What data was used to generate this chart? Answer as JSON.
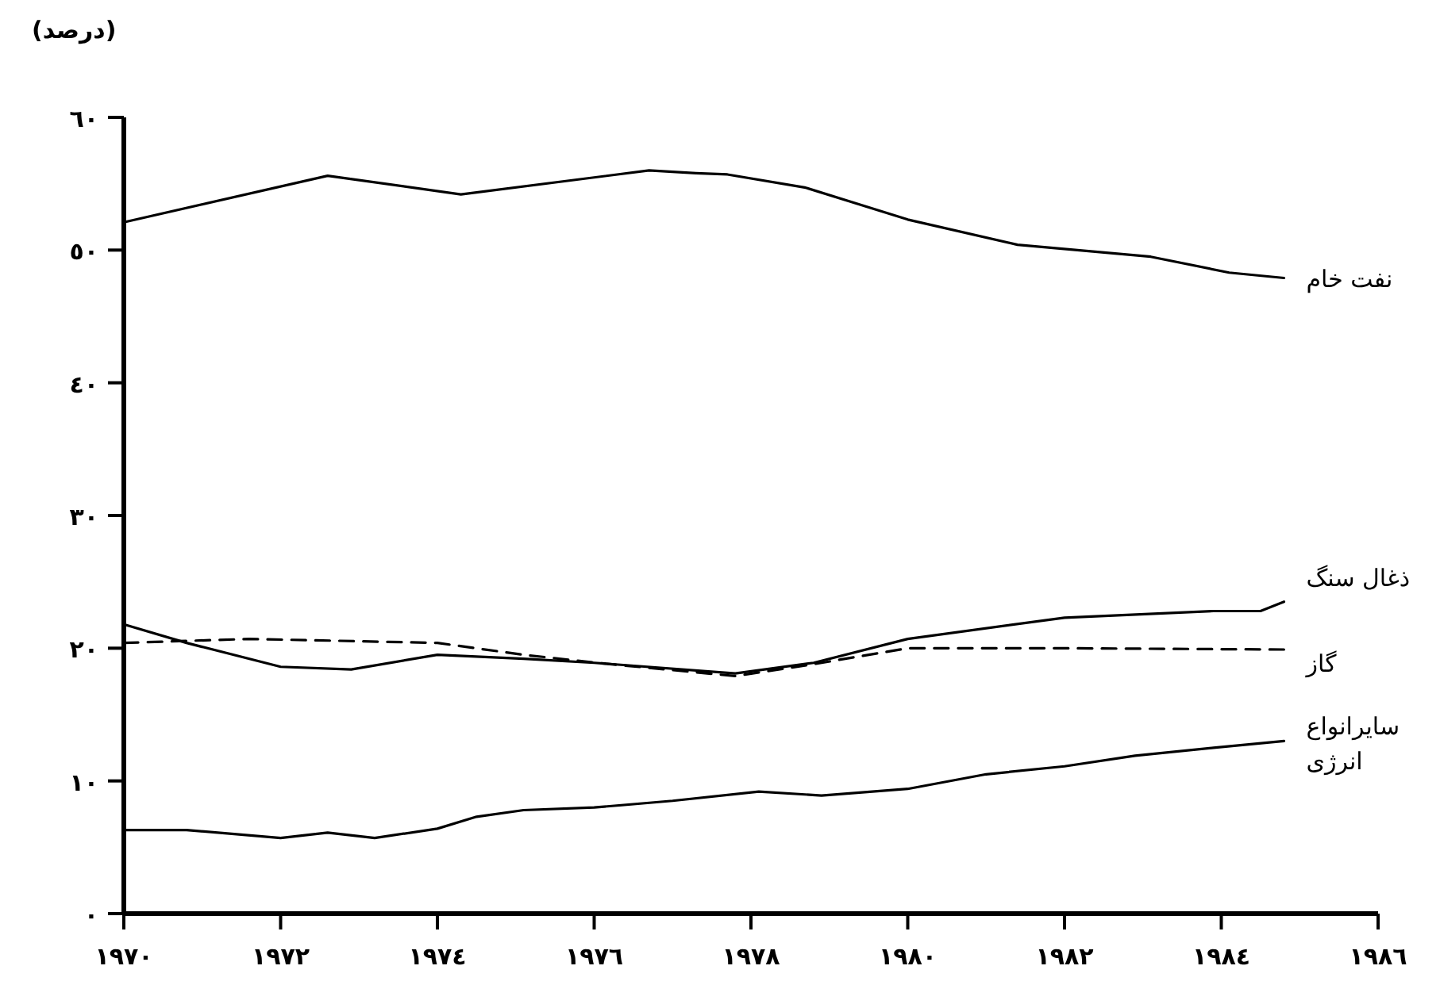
{
  "chart_data": {
    "type": "line",
    "ylabel": "(درصد)",
    "xlim": [
      1970,
      1986
    ],
    "ylim": [
      0,
      60
    ],
    "xticks": [
      {
        "value": 1970,
        "label": "١٩٧٠"
      },
      {
        "value": 1972,
        "label": "١٩٧٢"
      },
      {
        "value": 1974,
        "label": "١٩٧٤"
      },
      {
        "value": 1976,
        "label": "١٩٧٦"
      },
      {
        "value": 1978,
        "label": "١٩٧٨"
      },
      {
        "value": 1980,
        "label": "١٩٨٠"
      },
      {
        "value": 1982,
        "label": "١٩٨٢"
      },
      {
        "value": 1984,
        "label": "١٩٨٤"
      },
      {
        "value": 1986,
        "label": "١٩٨٦"
      }
    ],
    "yticks": [
      {
        "value": 0,
        "label": "٠"
      },
      {
        "value": 10,
        "label": "١٠"
      },
      {
        "value": 20,
        "label": "٢٠"
      },
      {
        "value": 30,
        "label": "٣٠"
      },
      {
        "value": 40,
        "label": "٤٠"
      },
      {
        "value": 50,
        "label": "٥٠"
      },
      {
        "value": 60,
        "label": "٦٠"
      }
    ],
    "grid": false,
    "series": [
      {
        "name": "نفت خام",
        "color": "#000000",
        "line_style": "solid",
        "x": [
          1970,
          1972.6,
          1974.3,
          1976.7,
          1977.3,
          1977.7,
          1978.7,
          1980,
          1981.4,
          1983.1,
          1984.1,
          1984.8
        ],
        "values": [
          52.1,
          55.6,
          54.2,
          56.0,
          55.8,
          55.7,
          54.7,
          52.3,
          50.4,
          49.5,
          48.3,
          47.9
        ]
      },
      {
        "name": "ذغال سنگ",
        "color": "#000000",
        "line_style": "solid",
        "x": [
          1970,
          1970.8,
          1972,
          1972.9,
          1974,
          1975.1,
          1976,
          1977.8,
          1978.8,
          1980,
          1982,
          1983.9,
          1984.5,
          1984.8
        ],
        "values": [
          21.8,
          20.4,
          18.6,
          18.4,
          19.5,
          19.2,
          18.9,
          18.1,
          18.9,
          20.7,
          22.3,
          22.8,
          22.8,
          23.5
        ]
      },
      {
        "name": "گاز",
        "color": "#000000",
        "line_style": "dashed",
        "x": [
          1970,
          1971.6,
          1974,
          1975.1,
          1976.2,
          1977.8,
          1978.8,
          1980,
          1982,
          1984.8
        ],
        "values": [
          20.4,
          20.7,
          20.4,
          19.5,
          18.8,
          17.9,
          18.8,
          20.0,
          20.0,
          19.9
        ]
      },
      {
        "name": "سایرانواع انرژی",
        "color": "#000000",
        "line_style": "solid",
        "x": [
          1970,
          1970.8,
          1972,
          1972.6,
          1973.2,
          1974,
          1974.5,
          1975.1,
          1976,
          1977,
          1978.1,
          1978.9,
          1980,
          1981,
          1982,
          1982.9,
          1983.9,
          1984.8
        ],
        "values": [
          6.3,
          6.3,
          5.7,
          6.1,
          5.7,
          6.4,
          7.3,
          7.8,
          8.0,
          8.5,
          9.2,
          8.9,
          9.4,
          10.5,
          11.1,
          11.9,
          12.5,
          13.0
        ]
      }
    ]
  }
}
